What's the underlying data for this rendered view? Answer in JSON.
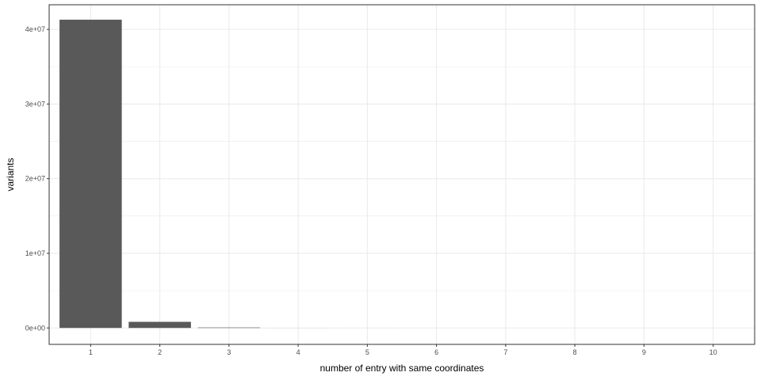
{
  "chart_data": {
    "type": "bar",
    "title": "",
    "xlabel": "number of entry with same coordinates",
    "ylabel": "variants",
    "categories": [
      "1",
      "2",
      "3",
      "4",
      "5",
      "6",
      "7",
      "8",
      "9",
      "10"
    ],
    "values": [
      41300000,
      820000,
      65000,
      6000,
      1200,
      400,
      150,
      60,
      30,
      15
    ],
    "ylim": [
      -2200000,
      43300000
    ],
    "yticks": [
      0,
      10000000,
      20000000,
      30000000,
      40000000
    ],
    "ytick_labels": [
      "0e+00",
      "1e+07",
      "2e+07",
      "3e+07",
      "4e+07"
    ],
    "grid": true,
    "bar_color": "#595959",
    "grid_color": "#ebebeb",
    "panel_border_color": "#333333"
  }
}
